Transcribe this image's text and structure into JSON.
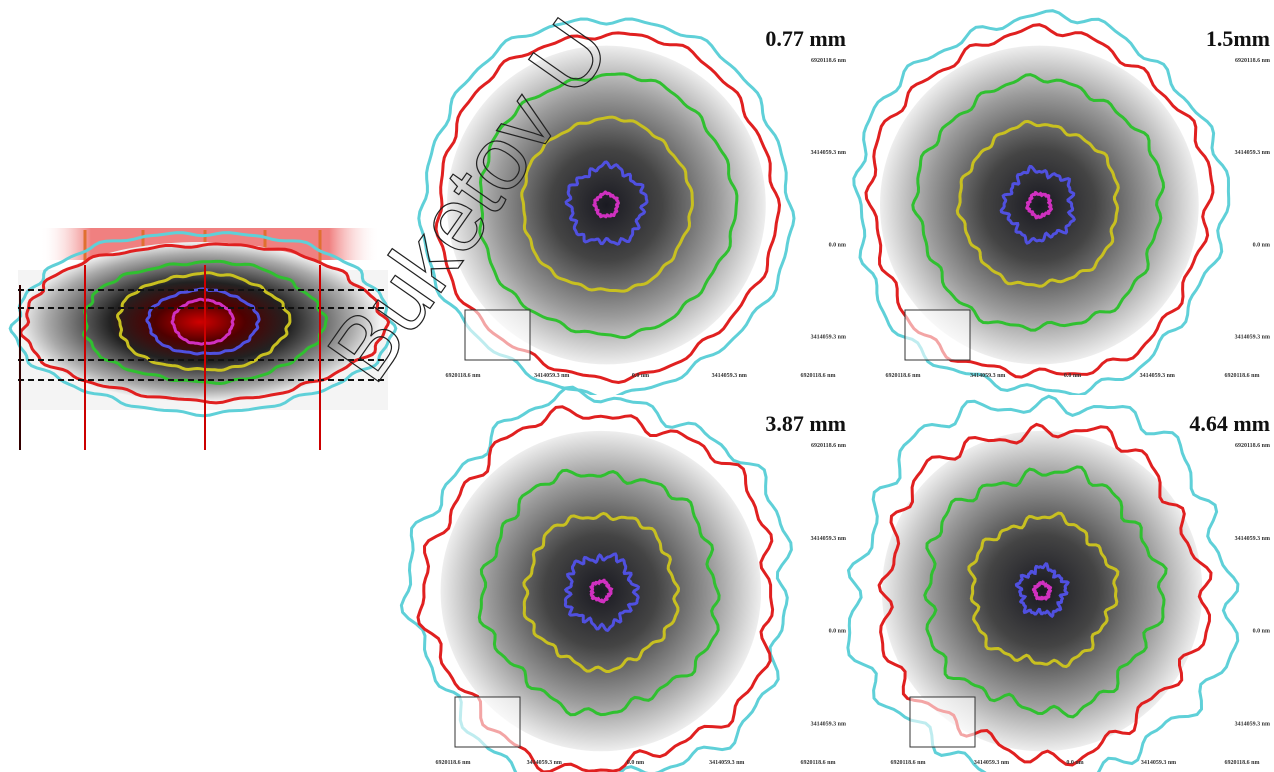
{
  "panels": [
    {
      "depth": "0.77 mm"
    },
    {
      "depth": "1.5mm"
    },
    {
      "depth": "3.87 mm"
    },
    {
      "depth": "4.64 mm"
    }
  ],
  "axis_labels": {
    "right": [
      "6920118.6 nm",
      "3414059.3 nm",
      "0.0 nm",
      "3414059.3 nm"
    ],
    "bottom": [
      "6920118.6 nm",
      "3414059.3 nm",
      "0.0 nm",
      "3414059.3 nm",
      "6920118.6 nm"
    ]
  },
  "watermark": "Buketov U"
}
